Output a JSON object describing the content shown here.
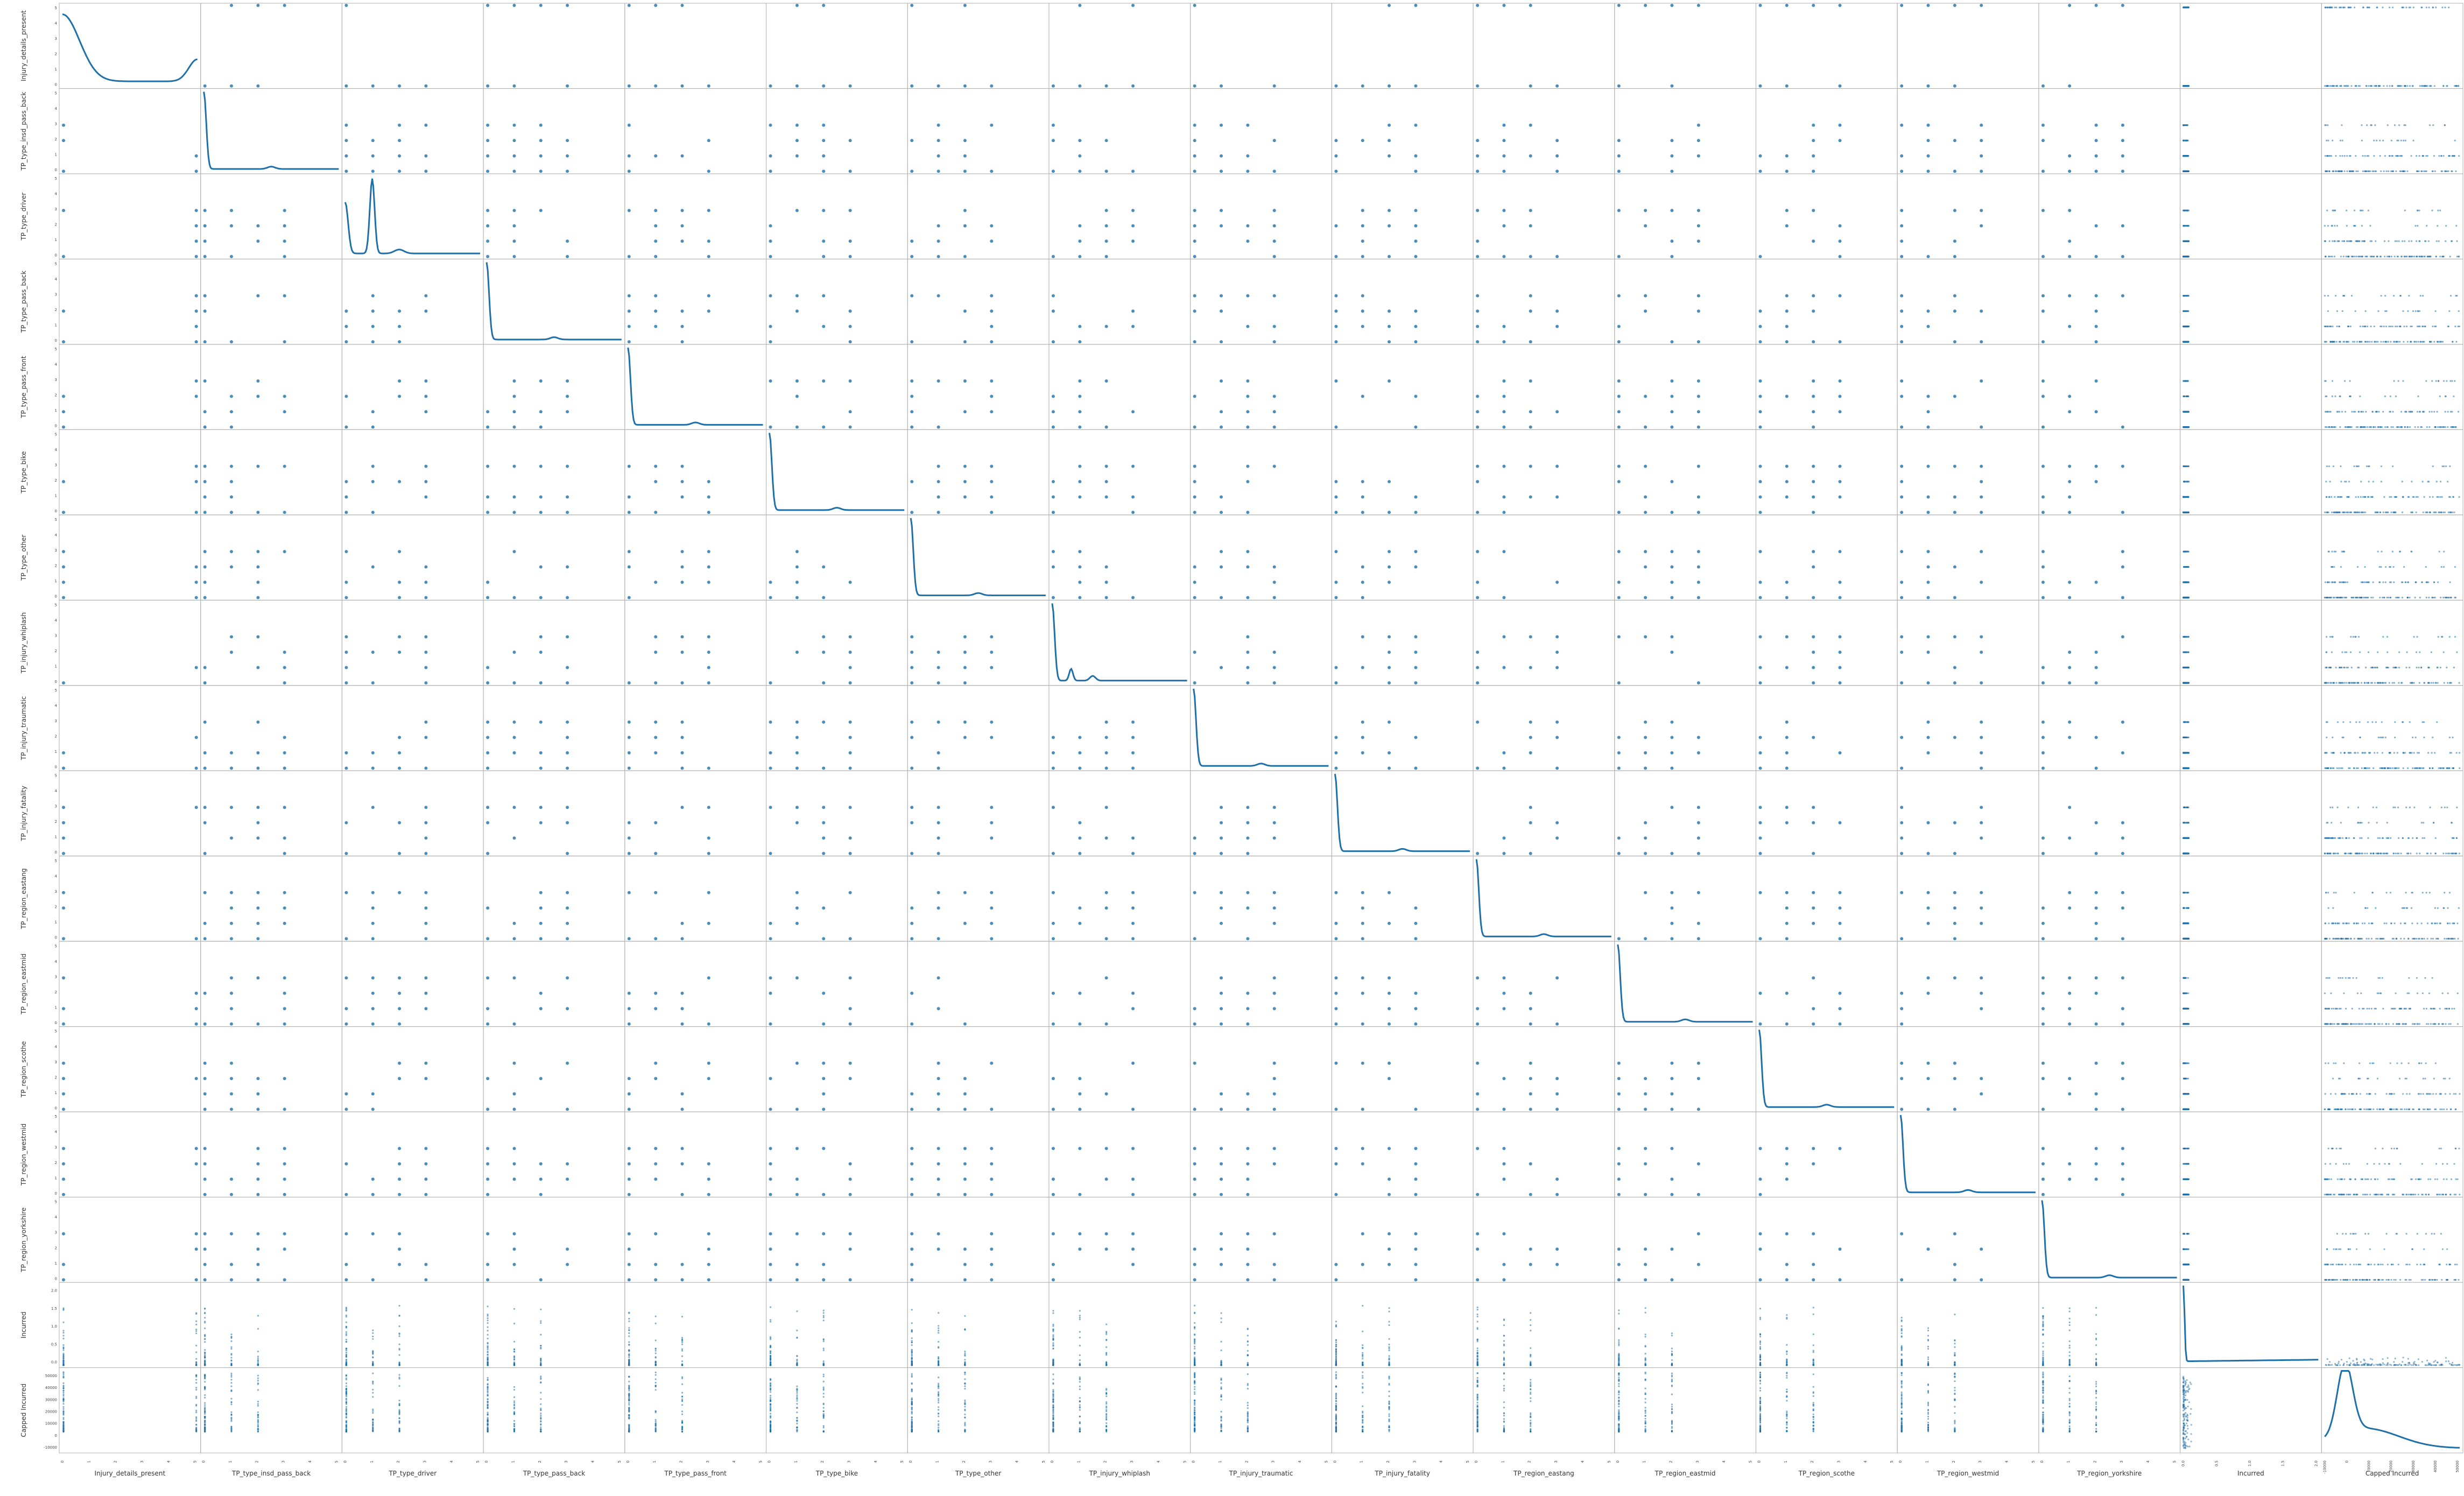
{
  "chart_data": {
    "type": "scatter",
    "layout": "scatter-matrix",
    "diagonal": "kde",
    "grid": false,
    "variables": [
      "Injury_details_present",
      "TP_type_insd_pass_back",
      "TP_type_driver",
      "TP_type_pass_back",
      "TP_type_pass_front",
      "TP_type_bike",
      "TP_type_other",
      "TP_injury_whiplash",
      "TP_injury_traumatic",
      "TP_injury_fatality",
      "TP_region_eastang",
      "TP_region_eastmid",
      "TP_region_scothe",
      "TP_region_westmid",
      "TP_region_yorkshire",
      "Incurred",
      "Capped Incurred"
    ],
    "series_color": "#1f6fa8",
    "binary_levels": [
      0,
      1,
      2,
      3,
      4,
      5
    ],
    "incurred_ticks": [
      "0.0",
      "0.5",
      "1.0",
      "1.5",
      "2.0"
    ],
    "capped_ticks": [
      "-10000",
      "0",
      "10000",
      "20000",
      "30000",
      "40000",
      "50000"
    ]
  }
}
